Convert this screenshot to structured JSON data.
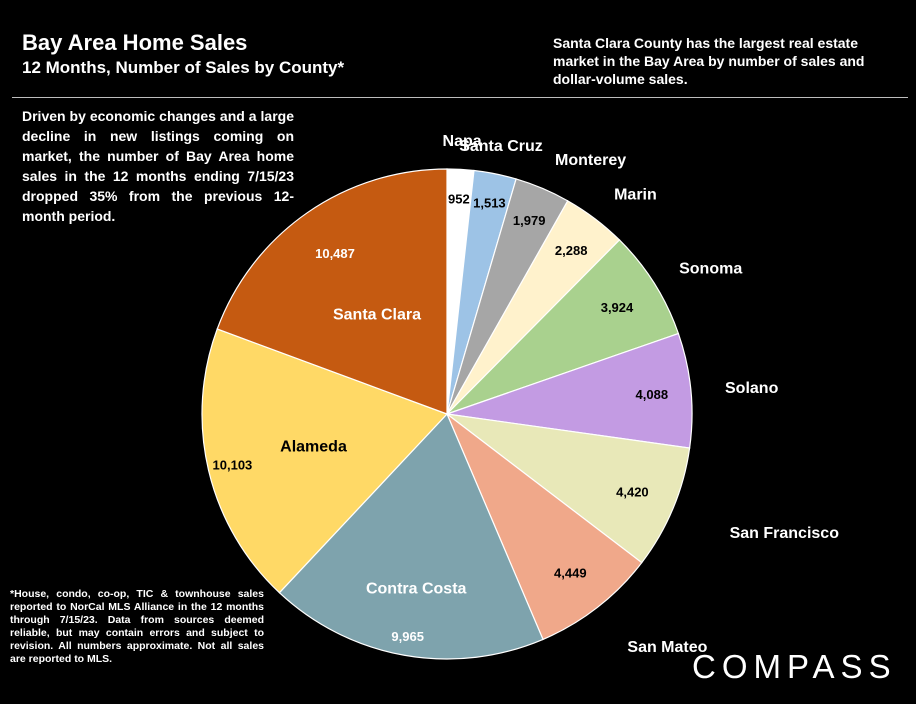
{
  "header": {
    "title": "Bay Area Home Sales",
    "subtitle": "12 Months, Number of Sales by County*",
    "callout": "Santa Clara County has the largest real estate market in the Bay Area by number of sales and dollar-volume sales."
  },
  "intro_text": "Driven by economic changes and a large decline in new listings coming on market, the number of Bay Area home sales in the 12 months ending 7/15/23 dropped 35% from the previous 12-month period.",
  "footnote": "*House, condo, co-op, TIC & townhouse sales reported to NorCal MLS Alliance in the 12 months through 7/15/23. Data from sources deemed reliable, but may contain errors and subject to revision. All numbers approximate. Not all sales are reported to MLS.",
  "logo_text": "COMPASS",
  "chart_data": {
    "type": "pie",
    "title": "Bay Area Home Sales",
    "subtitle": "12 Months, Number of Sales by County*",
    "start": "12 o'clock",
    "direction": "clockwise",
    "slices": [
      {
        "label": "Napa",
        "value": 952,
        "value_label": "952",
        "color": "#ffffff"
      },
      {
        "label": "Santa Cruz",
        "value": 1513,
        "value_label": "1,513",
        "color": "#9dc3e6"
      },
      {
        "label": "Monterey",
        "value": 1979,
        "value_label": "1,979",
        "color": "#a6a6a6"
      },
      {
        "label": "Marin",
        "value": 2288,
        "value_label": "2,288",
        "color": "#fff2cc"
      },
      {
        "label": "Sonoma",
        "value": 3924,
        "value_label": "3,924",
        "color": "#a9d18e"
      },
      {
        "label": "Solano",
        "value": 4088,
        "value_label": "4,088",
        "color": "#c39be3"
      },
      {
        "label": "San Francisco",
        "value": 4420,
        "value_label": "4,420",
        "color": "#e8e8b8"
      },
      {
        "label": "San Mateo",
        "value": 4449,
        "value_label": "4,449",
        "color": "#f0a88a"
      },
      {
        "label": "Contra Costa",
        "value": 9965,
        "value_label": "9,965",
        "color": "#7ea3ad"
      },
      {
        "label": "Alameda",
        "value": 10103,
        "value_label": "10,103",
        "color": "#ffd966"
      },
      {
        "label": "Santa Clara",
        "value": 10487,
        "value_label": "10,487",
        "color": "#c55a11"
      }
    ]
  }
}
